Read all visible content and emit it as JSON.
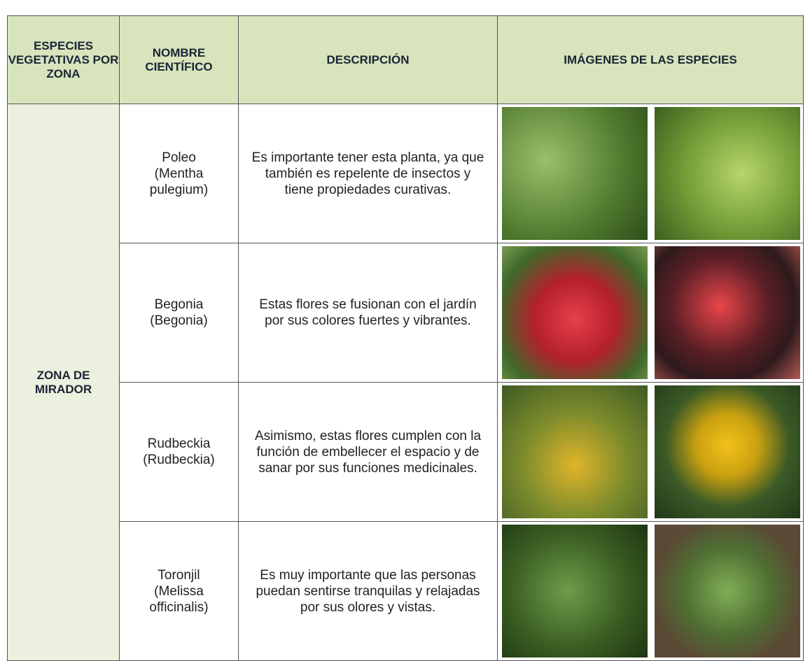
{
  "table": {
    "header": [
      "ESPECIES VEGETATIVAS POR ZONA",
      "NOMBRE CIENTÍFICO",
      "DESCRIPCIÓN",
      "IMÁGENES DE LAS ESPECIES"
    ],
    "zone": "ZONA DE MIRADOR",
    "rows": [
      {
        "name": "Poleo (Mentha pulegium)",
        "description": "Es importante tener esta planta, ya que también es repelente de insectos y tiene propiedades curativas."
      },
      {
        "name": "Begonia (Begonia)",
        "description": "Estas flores se fusionan con el jardín por sus colores fuertes y vibrantes."
      },
      {
        "name": "Rudbeckia (Rudbeckia)",
        "description": "Asimismo, estas flores cumplen con la función de embellecer el espacio y de sanar por sus funciones medicinales."
      },
      {
        "name": "Toronjil (Melissa officinalis)",
        "description": "Es muy importante que las personas puedan sentirse tranquilas y relajadas por sus olores y vistas."
      }
    ]
  }
}
